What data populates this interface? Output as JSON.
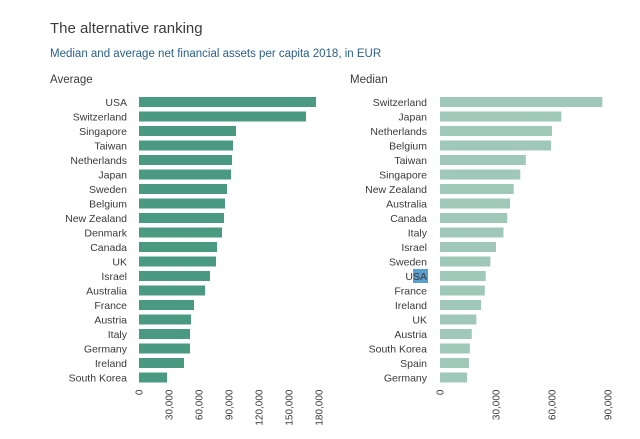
{
  "header": {
    "title": "The alternative ranking",
    "subtitle": "Median and average net financial assets per capita 2018, in EUR"
  },
  "colors": {
    "average_bar": "#4a9a82",
    "median_bar": "#9fc8b8",
    "highlight": "#5b9fd0",
    "label": "#3a3a3a",
    "title": "#3c3c3c",
    "subtitle": "#2a5f8a"
  },
  "chart_data": [
    {
      "type": "bar",
      "orientation": "horizontal",
      "panel_label": "Average",
      "categories": [
        "USA",
        "Switzerland",
        "Singapore",
        "Taiwan",
        "Netherlands",
        "Japan",
        "Sweden",
        "Belgium",
        "New Zealand",
        "Denmark",
        "Canada",
        "UK",
        "Israel",
        "Australia",
        "France",
        "Austria",
        "Italy",
        "Germany",
        "Ireland",
        "South Korea"
      ],
      "values": [
        177000,
        167000,
        97000,
        94000,
        93000,
        92000,
        88000,
        86000,
        85000,
        83000,
        78000,
        77000,
        71000,
        66000,
        55000,
        52000,
        51000,
        51000,
        45000,
        28000
      ],
      "ticks": [
        "0",
        "30,000",
        "60,000",
        "90,000",
        "120,000",
        "150,000",
        "180,000"
      ],
      "xlim": [
        0,
        180000
      ],
      "grid": false
    },
    {
      "type": "bar",
      "orientation": "horizontal",
      "panel_label": "Median",
      "categories": [
        "Switzerland",
        "Japan",
        "Netherlands",
        "Belgium",
        "Taiwan",
        "Singapore",
        "New Zealand",
        "Australia",
        "Canada",
        "Italy",
        "Israel",
        "Sweden",
        "USA",
        "France",
        "Ireland",
        "UK",
        "Austria",
        "South Korea",
        "Spain",
        "Germany"
      ],
      "values": [
        87000,
        65000,
        60000,
        59500,
        46000,
        43000,
        39500,
        37500,
        36000,
        34000,
        30000,
        27000,
        24500,
        24000,
        22000,
        19500,
        17000,
        16000,
        15500,
        14500
      ],
      "highlight_category": "USA",
      "ticks": [
        "0",
        "30,000",
        "60,000",
        "90,000"
      ],
      "xlim": [
        0,
        90000
      ],
      "grid": false
    }
  ]
}
